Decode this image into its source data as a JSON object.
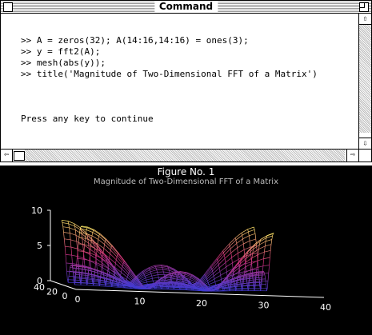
{
  "command_window": {
    "title": "Command",
    "lines": [
      ">> A = zeros(32); A(14:16,14:16) = ones(3);",
      ">> y = fft2(A);",
      ">> mesh(abs(y));",
      ">> title('Magnitude of Two-Dimensional FFT of a Matrix')",
      "",
      "Press any key to continue"
    ]
  },
  "figure_window": {
    "title": "Figure No. 1",
    "plot_title": "Magnitude of Two-Dimensional FFT of a Matrix",
    "z_ticks": [
      "0",
      "5",
      "10"
    ],
    "x_ticks": [
      "0",
      "10",
      "20",
      "30",
      "40"
    ],
    "y_ticks": [
      "0",
      "20",
      "40"
    ],
    "colors": {
      "background": "#000000",
      "axes": "#ffffff",
      "mesh_low": "#3b3bd6",
      "mesh_mid": "#d0307a",
      "mesh_high": "#ffee66"
    }
  },
  "chart_data": {
    "type": "mesh",
    "title": "Magnitude of Two-Dimensional FFT of a Matrix",
    "x_range": [
      0,
      40
    ],
    "y_range": [
      0,
      40
    ],
    "z_range": [
      0,
      10
    ],
    "surface": "abs(fft2(A)) where A = zeros(32) with A(14:16,14:16) = ones(3)",
    "grid_size": [
      32,
      32
    ],
    "peak": 9
  }
}
